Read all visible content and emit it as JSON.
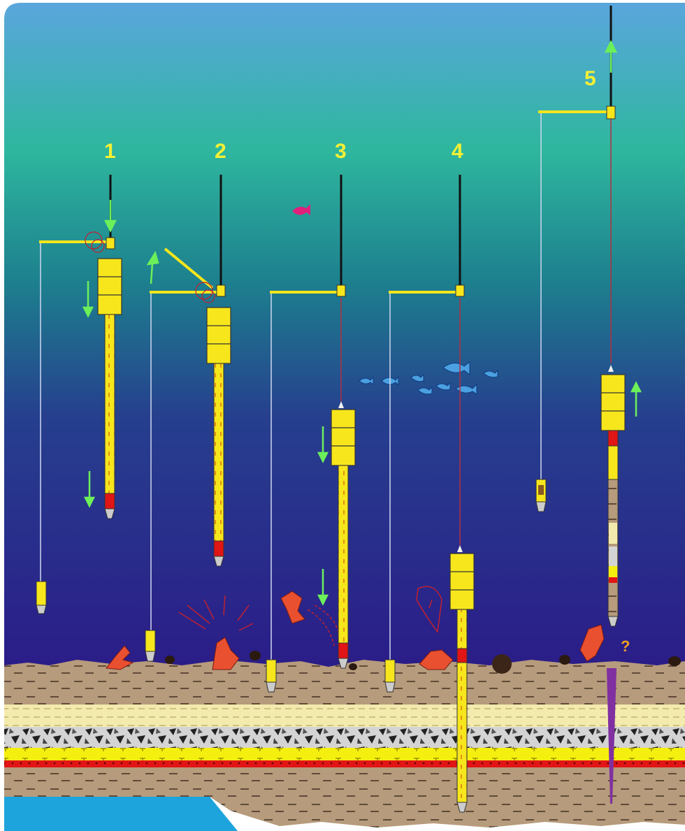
{
  "stages": [
    {
      "label": "1"
    },
    {
      "label": "2"
    },
    {
      "label": "3"
    },
    {
      "label": "4"
    },
    {
      "label": "5"
    }
  ],
  "annotation": "?",
  "colors": {
    "water_top": "#58a7dc",
    "water_mid": "#2bb59a",
    "water_bottom": "#2a1a8a",
    "label": "#f4f034",
    "corer": "#f7e61c",
    "arrow": "#6cf05a",
    "cable": "#111111",
    "core_line": "#b03040",
    "trigger_line": "#d0d8f0",
    "sediment_brown": "#b59a7c",
    "sand_layer": "#f3ebae",
    "gravel_layer": "#cfcfcf",
    "yellow_layer": "#f5f00a",
    "red_layer": "#e01515",
    "coral": "#e85030"
  },
  "icons": [
    "fish-icon",
    "coral-icon",
    "weight-stack-icon",
    "arrow-icon",
    "question-mark"
  ]
}
